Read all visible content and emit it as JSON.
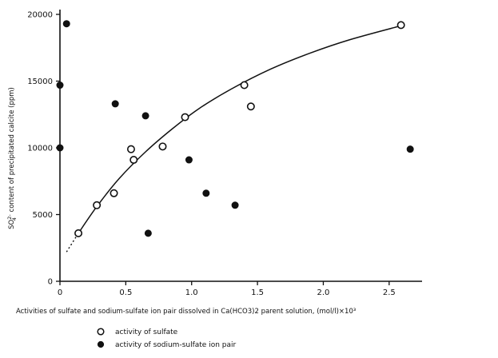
{
  "chart_data": {
    "type": "scatter",
    "title": "",
    "xlabel": "Activities of sulfate and sodium-sulfate ion pair dissolved in Ca(HCO3)2 parent solution, (mol/l)×10³",
    "ylabel_prefix": "SO",
    "ylabel_sup": "2-",
    "ylabel_sub": "4",
    "ylabel_rest": " content of precipitated calcite (ppm)",
    "xlim": [
      0,
      2.75
    ],
    "ylim": [
      0,
      20000
    ],
    "x_ticks": [
      0,
      0.5,
      1.0,
      1.5,
      2.0,
      2.5
    ],
    "x_tick_labels": [
      "0",
      "0.5",
      "1.0",
      "1.5",
      "2.0",
      "2.5"
    ],
    "y_ticks": [
      0,
      5000,
      10000,
      15000,
      20000
    ],
    "y_tick_labels": [
      "0",
      "5000",
      "10000",
      "15000",
      "20000"
    ],
    "grid": false,
    "legend_position": "bottom-left",
    "series": [
      {
        "name": "activity of sulfate",
        "marker": "open-circle",
        "points": [
          {
            "x": 0.14,
            "y": 3600
          },
          {
            "x": 0.28,
            "y": 5700
          },
          {
            "x": 0.41,
            "y": 6600
          },
          {
            "x": 0.54,
            "y": 9900
          },
          {
            "x": 0.56,
            "y": 9100
          },
          {
            "x": 0.78,
            "y": 10100
          },
          {
            "x": 0.95,
            "y": 12300
          },
          {
            "x": 1.4,
            "y": 14700
          },
          {
            "x": 1.45,
            "y": 13100
          },
          {
            "x": 2.59,
            "y": 19200
          }
        ]
      },
      {
        "name": "activity of sodium-sulfate ion pair",
        "marker": "filled-circle",
        "points": [
          {
            "x": 0.0,
            "y": 10000
          },
          {
            "x": 0.0,
            "y": 14700
          },
          {
            "x": 0.05,
            "y": 19300
          },
          {
            "x": 0.42,
            "y": 13300
          },
          {
            "x": 0.65,
            "y": 12400
          },
          {
            "x": 0.67,
            "y": 3600
          },
          {
            "x": 0.98,
            "y": 9100
          },
          {
            "x": 1.11,
            "y": 6600
          },
          {
            "x": 1.33,
            "y": 5700
          },
          {
            "x": 2.66,
            "y": 9900
          }
        ]
      }
    ],
    "fit_curve": {
      "style": "hand-drawn trend curve (dashed at low end)",
      "points": [
        {
          "x": 0.05,
          "y": 2200
        },
        {
          "x": 0.14,
          "y": 3600
        },
        {
          "x": 0.28,
          "y": 5600
        },
        {
          "x": 0.45,
          "y": 7700
        },
        {
          "x": 0.65,
          "y": 9700
        },
        {
          "x": 0.85,
          "y": 11400
        },
        {
          "x": 1.05,
          "y": 12900
        },
        {
          "x": 1.3,
          "y": 14400
        },
        {
          "x": 1.6,
          "y": 15900
        },
        {
          "x": 1.9,
          "y": 17100
        },
        {
          "x": 2.2,
          "y": 18100
        },
        {
          "x": 2.59,
          "y": 19150
        }
      ]
    },
    "legend": [
      {
        "marker": "open-circle",
        "label": "activity of sulfate"
      },
      {
        "marker": "filled-circle",
        "label": "activity of sodium-sulfate ion pair"
      }
    ]
  }
}
